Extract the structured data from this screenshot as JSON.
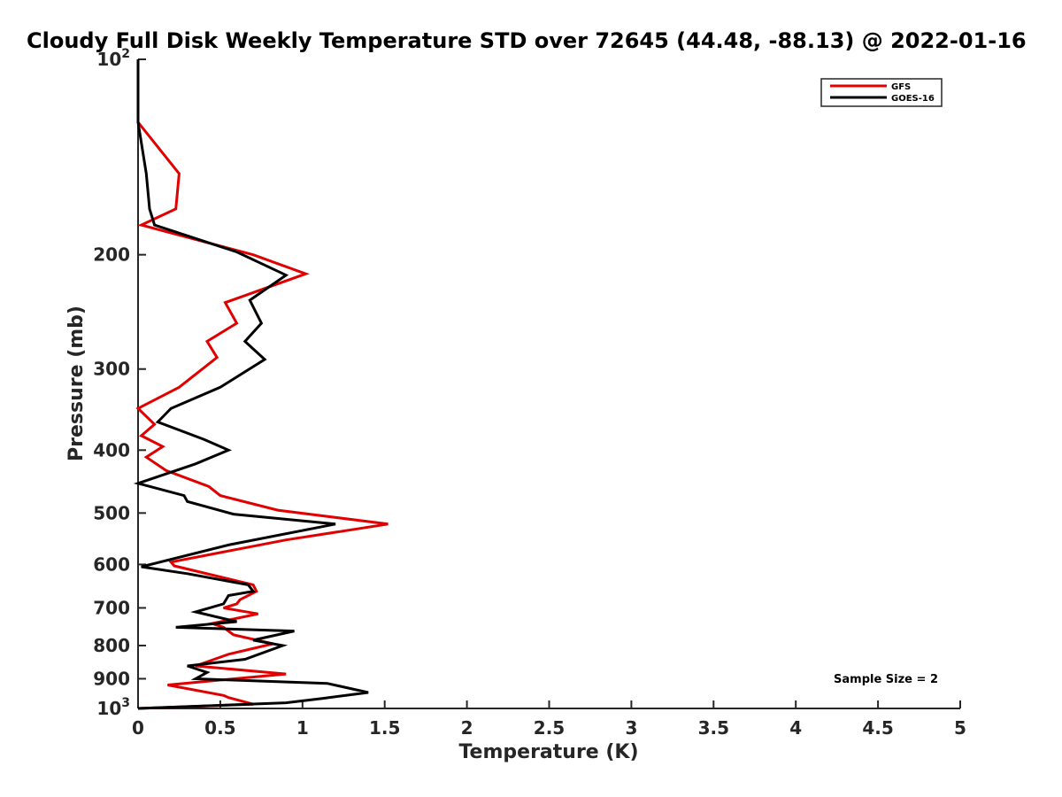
{
  "chart_data": {
    "type": "line",
    "title": "Cloudy Full Disk Weekly Temperature STD over 72645 (44.48, -88.13) @ 2022-01-16",
    "xlabel": "Temperature (K)",
    "ylabel": "Pressure (mb)",
    "xlim": [
      0,
      5
    ],
    "ylim": [
      100,
      1000
    ],
    "y_scale": "log",
    "y_reversed": true,
    "grid": false,
    "legend_position": "top-right",
    "x_ticks": [
      0,
      0.5,
      1,
      1.5,
      2,
      2.5,
      3,
      3.5,
      4,
      4.5,
      5
    ],
    "x_tick_labels": [
      "0",
      "0.5",
      "1",
      "1.5",
      "2",
      "2.5",
      "3",
      "3.5",
      "4",
      "4.5",
      "5"
    ],
    "y_ticks": [
      100,
      200,
      300,
      400,
      500,
      600,
      700,
      800,
      900,
      1000
    ],
    "y_tick_labels": [
      {
        "base": "10",
        "exp": "2"
      },
      {
        "base": "200"
      },
      {
        "base": "300"
      },
      {
        "base": "400"
      },
      {
        "base": "500"
      },
      {
        "base": "600"
      },
      {
        "base": "700"
      },
      {
        "base": "800"
      },
      {
        "base": "900"
      },
      {
        "base": "10",
        "exp": "3"
      }
    ],
    "annotation": "Sample Size = 2",
    "series": [
      {
        "name": "GFS",
        "color": "#e00000",
        "points": [
          [
            0,
            100
          ],
          [
            0,
            125
          ],
          [
            0.25,
            150
          ],
          [
            0.23,
            170
          ],
          [
            0.02,
            180
          ],
          [
            0.7,
            200
          ],
          [
            1.02,
            214
          ],
          [
            0.53,
            237
          ],
          [
            0.6,
            255
          ],
          [
            0.42,
            272
          ],
          [
            0.48,
            288
          ],
          [
            0.25,
            320
          ],
          [
            0,
            345
          ],
          [
            0.1,
            365
          ],
          [
            0.02,
            380
          ],
          [
            0.15,
            395
          ],
          [
            0.05,
            410
          ],
          [
            0.17,
            430
          ],
          [
            0.43,
            455
          ],
          [
            0.5,
            470
          ],
          [
            0.85,
            495
          ],
          [
            1.52,
            520
          ],
          [
            0.9,
            550
          ],
          [
            0.2,
            595
          ],
          [
            0.22,
            603
          ],
          [
            0.7,
            645
          ],
          [
            0.72,
            660
          ],
          [
            0.62,
            680
          ],
          [
            0.6,
            690
          ],
          [
            0.52,
            700
          ],
          [
            0.73,
            715
          ],
          [
            0.45,
            740
          ],
          [
            0.52,
            750
          ],
          [
            0.58,
            770
          ],
          [
            0.82,
            795
          ],
          [
            0.55,
            825
          ],
          [
            0.35,
            860
          ],
          [
            0.9,
            885
          ],
          [
            0.18,
            920
          ],
          [
            0.52,
            955
          ],
          [
            0.55,
            962
          ],
          [
            0.7,
            985
          ],
          [
            0,
            1000
          ]
        ]
      },
      {
        "name": "GOES-16",
        "color": "#000000",
        "points": [
          [
            0,
            100
          ],
          [
            0,
            125
          ],
          [
            0.05,
            150
          ],
          [
            0.07,
            170
          ],
          [
            0.1,
            180
          ],
          [
            0.6,
            198
          ],
          [
            0.9,
            215
          ],
          [
            0.68,
            235
          ],
          [
            0.75,
            255
          ],
          [
            0.65,
            272
          ],
          [
            0.77,
            290
          ],
          [
            0.5,
            320
          ],
          [
            0.2,
            345
          ],
          [
            0.12,
            362
          ],
          [
            0.4,
            385
          ],
          [
            0.55,
            400
          ],
          [
            0.35,
            420
          ],
          [
            0,
            450
          ],
          [
            0.28,
            470
          ],
          [
            0.3,
            480
          ],
          [
            0.58,
            502
          ],
          [
            1.2,
            520
          ],
          [
            0.55,
            560
          ],
          [
            0.02,
            605
          ],
          [
            0.3,
            620
          ],
          [
            0.67,
            645
          ],
          [
            0.7,
            660
          ],
          [
            0.55,
            670
          ],
          [
            0.52,
            690
          ],
          [
            0.35,
            710
          ],
          [
            0.6,
            735
          ],
          [
            0.23,
            750
          ],
          [
            0.95,
            760
          ],
          [
            0.7,
            785
          ],
          [
            0.88,
            800
          ],
          [
            0.65,
            840
          ],
          [
            0.3,
            860
          ],
          [
            0.42,
            880
          ],
          [
            0.35,
            900
          ],
          [
            1.15,
            915
          ],
          [
            1.4,
            945
          ],
          [
            1.12,
            965
          ],
          [
            0.9,
            980
          ],
          [
            0,
            1000
          ]
        ]
      }
    ]
  }
}
